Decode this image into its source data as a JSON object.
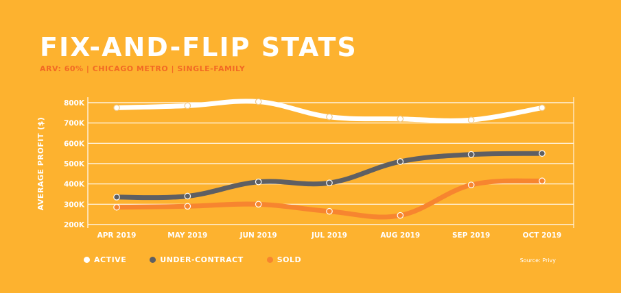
{
  "header": {
    "title": "FIX-AND-FLIP STATS",
    "subtitle": "ARV: 60% | CHICAGO METRO | SINGLE-FAMILY"
  },
  "source": "Source: Privy",
  "colors": {
    "background": "#FDB22F",
    "active": "#FFFFFF",
    "under_contract": "#5E5F63",
    "sold": "#F7852F",
    "gridline": "#FFFFFF"
  },
  "chart_data": {
    "type": "line",
    "title": "FIX-AND-FLIP STATS",
    "subtitle": "ARV: 60% | CHICAGO METRO | SINGLE-FAMILY",
    "ylabel": "AVERAGE PROFIT ($)",
    "xlabel": "",
    "categories": [
      "APR 2019",
      "MAY 2019",
      "JUN 2019",
      "JUL 2019",
      "AUG 2019",
      "SEP 2019",
      "OCT 2019"
    ],
    "y_ticks": [
      200,
      300,
      400,
      500,
      600,
      700,
      800
    ],
    "y_tick_labels": [
      "200K",
      "300K",
      "400K",
      "500K",
      "600K",
      "700K",
      "800K"
    ],
    "ylim": [
      200,
      800
    ],
    "grid": true,
    "legend_position": "bottom-left",
    "series": [
      {
        "name": "ACTIVE",
        "color": "#FFFFFF",
        "values": [
          775,
          785,
          805,
          730,
          720,
          715,
          775
        ]
      },
      {
        "name": "UNDER-CONTRACT",
        "color": "#5E5F63",
        "values": [
          335,
          340,
          410,
          405,
          510,
          545,
          550
        ]
      },
      {
        "name": "SOLD",
        "color": "#F7852F",
        "values": [
          285,
          290,
          300,
          265,
          245,
          395,
          415
        ]
      }
    ]
  }
}
